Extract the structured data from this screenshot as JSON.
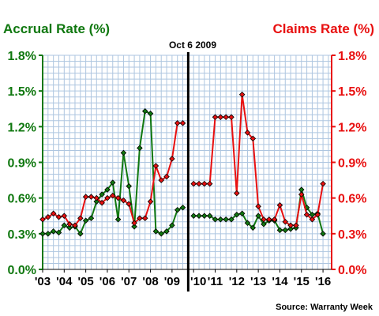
{
  "chart_data": {
    "type": "line",
    "left_title": "Accrual Rate (%)",
    "right_title": "Claims Rate (%)",
    "annotation": "Oct 6 2009",
    "source": "Source: Warranty Week",
    "x_labels": [
      "'03",
      "'04",
      "'05",
      "'06",
      "'07",
      "'08",
      "'09",
      "'10",
      "'11",
      "'12",
      "'13",
      "'14",
      "'15",
      "'16"
    ],
    "y_ticks": [
      "0.0%",
      "0.3%",
      "0.6%",
      "0.9%",
      "1.2%",
      "1.5%",
      "1.8%"
    ],
    "ylim": [
      0,
      1.8
    ],
    "xlim": [
      2003,
      2016.4
    ],
    "grid": true,
    "colors": {
      "accrual": "#107810",
      "claims": "#e81010",
      "grid": "#aec6e0",
      "divider": "#000000"
    },
    "series": [
      {
        "name": "Accrual Rate (%)",
        "role": "accrual",
        "segments": [
          [
            [
              2003.0,
              0.3
            ],
            [
              2003.25,
              0.3
            ],
            [
              2003.5,
              0.32
            ],
            [
              2003.75,
              0.31
            ],
            [
              2004.0,
              0.37
            ],
            [
              2004.25,
              0.35
            ],
            [
              2004.5,
              0.36
            ],
            [
              2004.75,
              0.3
            ],
            [
              2005.0,
              0.41
            ],
            [
              2005.25,
              0.43
            ],
            [
              2005.5,
              0.57
            ],
            [
              2005.75,
              0.63
            ],
            [
              2006.0,
              0.67
            ],
            [
              2006.25,
              0.73
            ],
            [
              2006.5,
              0.42
            ],
            [
              2006.75,
              0.98
            ],
            [
              2007.0,
              0.7
            ],
            [
              2007.25,
              0.36
            ],
            [
              2007.5,
              1.02
            ],
            [
              2007.75,
              1.33
            ],
            [
              2008.0,
              1.31
            ],
            [
              2008.25,
              0.32
            ],
            [
              2008.5,
              0.3
            ],
            [
              2008.75,
              0.32
            ],
            [
              2009.0,
              0.37
            ],
            [
              2009.25,
              0.5
            ],
            [
              2009.5,
              0.52
            ]
          ],
          [
            [
              2010.0,
              0.45
            ],
            [
              2010.25,
              0.45
            ],
            [
              2010.5,
              0.45
            ],
            [
              2010.75,
              0.45
            ],
            [
              2011.0,
              0.42
            ],
            [
              2011.25,
              0.42
            ],
            [
              2011.5,
              0.42
            ],
            [
              2011.75,
              0.42
            ],
            [
              2012.0,
              0.46
            ],
            [
              2012.25,
              0.47
            ],
            [
              2012.5,
              0.39
            ],
            [
              2012.75,
              0.35
            ],
            [
              2013.0,
              0.45
            ],
            [
              2013.25,
              0.38
            ],
            [
              2013.5,
              0.41
            ],
            [
              2013.75,
              0.41
            ],
            [
              2014.0,
              0.33
            ],
            [
              2014.25,
              0.33
            ],
            [
              2014.5,
              0.34
            ],
            [
              2014.75,
              0.35
            ],
            [
              2015.0,
              0.67
            ],
            [
              2015.25,
              0.52
            ],
            [
              2015.5,
              0.46
            ],
            [
              2015.75,
              0.47
            ],
            [
              2016.0,
              0.3
            ]
          ]
        ]
      },
      {
        "name": "Claims Rate (%)",
        "role": "claims",
        "segments": [
          [
            [
              2003.0,
              0.42
            ],
            [
              2003.25,
              0.44
            ],
            [
              2003.5,
              0.47
            ],
            [
              2003.75,
              0.44
            ],
            [
              2004.0,
              0.45
            ],
            [
              2004.25,
              0.38
            ],
            [
              2004.5,
              0.37
            ],
            [
              2004.75,
              0.43
            ],
            [
              2005.0,
              0.61
            ],
            [
              2005.25,
              0.61
            ],
            [
              2005.5,
              0.6
            ],
            [
              2005.75,
              0.56
            ],
            [
              2006.0,
              0.6
            ],
            [
              2006.25,
              0.62
            ],
            [
              2006.5,
              0.6
            ],
            [
              2006.75,
              0.58
            ],
            [
              2007.0,
              0.55
            ],
            [
              2007.25,
              0.39
            ],
            [
              2007.5,
              0.43
            ],
            [
              2007.75,
              0.43
            ],
            [
              2008.0,
              0.57
            ],
            [
              2008.25,
              0.87
            ],
            [
              2008.5,
              0.75
            ],
            [
              2008.75,
              0.78
            ],
            [
              2009.0,
              0.93
            ],
            [
              2009.25,
              1.23
            ],
            [
              2009.5,
              1.23
            ]
          ],
          [
            [
              2010.0,
              0.72
            ],
            [
              2010.25,
              0.72
            ],
            [
              2010.5,
              0.72
            ],
            [
              2010.75,
              0.72
            ],
            [
              2011.0,
              1.28
            ],
            [
              2011.25,
              1.28
            ],
            [
              2011.5,
              1.28
            ],
            [
              2011.75,
              1.28
            ],
            [
              2012.0,
              0.64
            ],
            [
              2012.25,
              1.47
            ],
            [
              2012.5,
              1.15
            ],
            [
              2012.75,
              1.1
            ],
            [
              2013.0,
              0.53
            ],
            [
              2013.25,
              0.42
            ],
            [
              2013.5,
              0.42
            ],
            [
              2013.75,
              0.42
            ],
            [
              2014.0,
              0.54
            ],
            [
              2014.25,
              0.4
            ],
            [
              2014.5,
              0.37
            ],
            [
              2014.75,
              0.37
            ],
            [
              2015.0,
              0.63
            ],
            [
              2015.25,
              0.46
            ],
            [
              2015.5,
              0.42
            ],
            [
              2015.75,
              0.46
            ],
            [
              2016.0,
              0.72
            ]
          ]
        ]
      }
    ],
    "divider_x": 2009.75
  }
}
